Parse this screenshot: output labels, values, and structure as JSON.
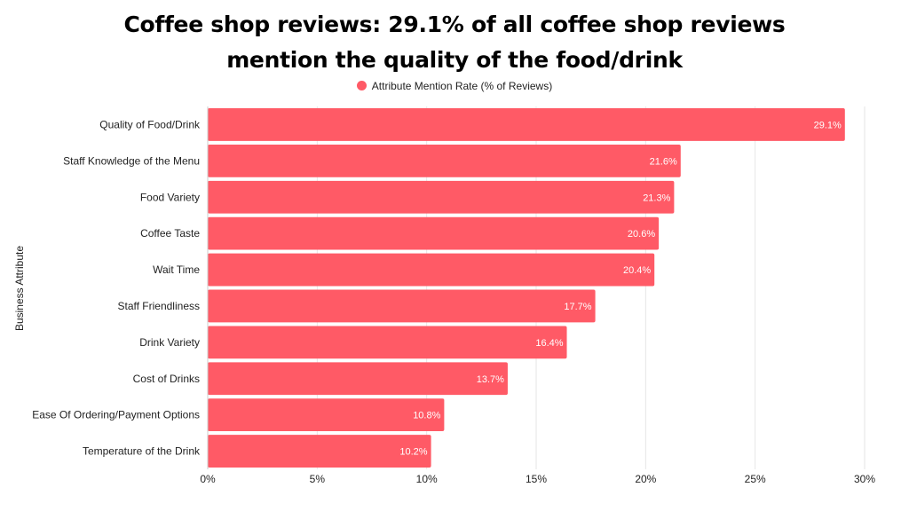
{
  "chart_data": {
    "type": "bar",
    "orientation": "horizontal",
    "title_line1": "Coffee shop reviews: 29.1% of all coffee shop reviews",
    "title_line2": "mention the quality of the food/drink",
    "ylabel": "Business Attribute",
    "xlabel": "",
    "xlim": [
      0,
      30
    ],
    "xticks": [
      "0%",
      "5%",
      "10%",
      "15%",
      "20%",
      "25%",
      "30%"
    ],
    "xtick_values": [
      0,
      5,
      10,
      15,
      20,
      25,
      30
    ],
    "grid": true,
    "legend_position": "top-center",
    "series": [
      {
        "name": "Attribute Mention Rate (% of Reviews)",
        "color": "#ff5a66",
        "values": [
          29.1,
          21.6,
          21.3,
          20.6,
          20.4,
          17.7,
          16.4,
          13.7,
          10.8,
          10.2
        ],
        "labels": [
          "29.1%",
          "21.6%",
          "21.3%",
          "20.6%",
          "20.4%",
          "17.7%",
          "16.4%",
          "13.7%",
          "10.8%",
          "10.2%"
        ]
      }
    ],
    "categories": [
      "Quality of Food/Drink",
      "Staff Knowledge of the Menu",
      "Food Variety",
      "Coffee Taste",
      "Wait Time",
      "Staff Friendliness",
      "Drink Variety",
      "Cost of Drinks",
      "Ease Of Ordering/Payment Options",
      "Temperature of the Drink"
    ]
  }
}
